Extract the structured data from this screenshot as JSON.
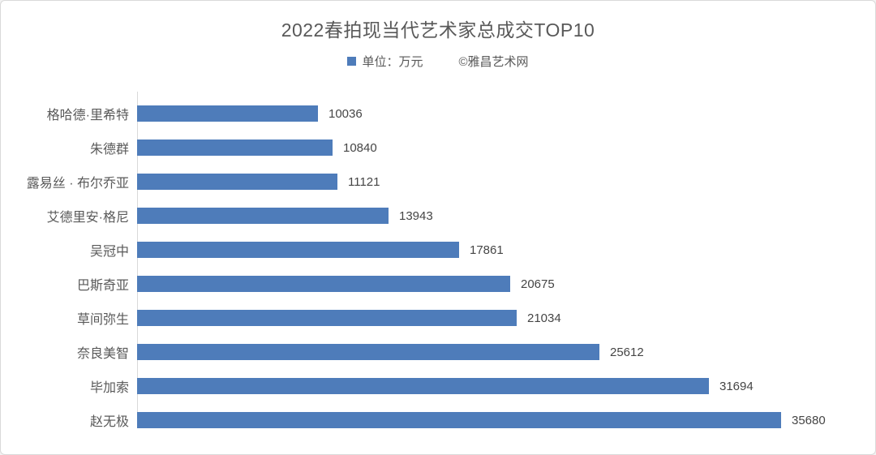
{
  "title": "2022春拍现当代艺术家总成交TOP10",
  "legend": {
    "unit_label": "单位：万元",
    "credit": "©雅昌艺术网"
  },
  "colors": {
    "bar": "#4e7cba",
    "title_text": "#595959",
    "axis_line": "#d9d9d9",
    "frame_border": "#d9d9d9"
  },
  "chart_data": {
    "type": "bar",
    "orientation": "horizontal",
    "title": "2022春拍现当代艺术家总成交TOP10",
    "unit": "万元",
    "categories": [
      "格哈德·里希特",
      "朱德群",
      "露易丝 · 布尔乔亚",
      "艾德里安·格尼",
      "吴冠中",
      "巴斯奇亚",
      "草间弥生",
      "奈良美智",
      "毕加索",
      "赵无极"
    ],
    "values": [
      10036,
      10840,
      11121,
      13943,
      17861,
      20675,
      21034,
      25612,
      31694,
      35680
    ],
    "data_labels": [
      "10036",
      "10840",
      "11121",
      "13943",
      "17861",
      "20675",
      "21034",
      "25612",
      "31694",
      "35680"
    ],
    "xlim": [
      0,
      40000
    ],
    "grid": false,
    "legend_position": "top-center"
  }
}
